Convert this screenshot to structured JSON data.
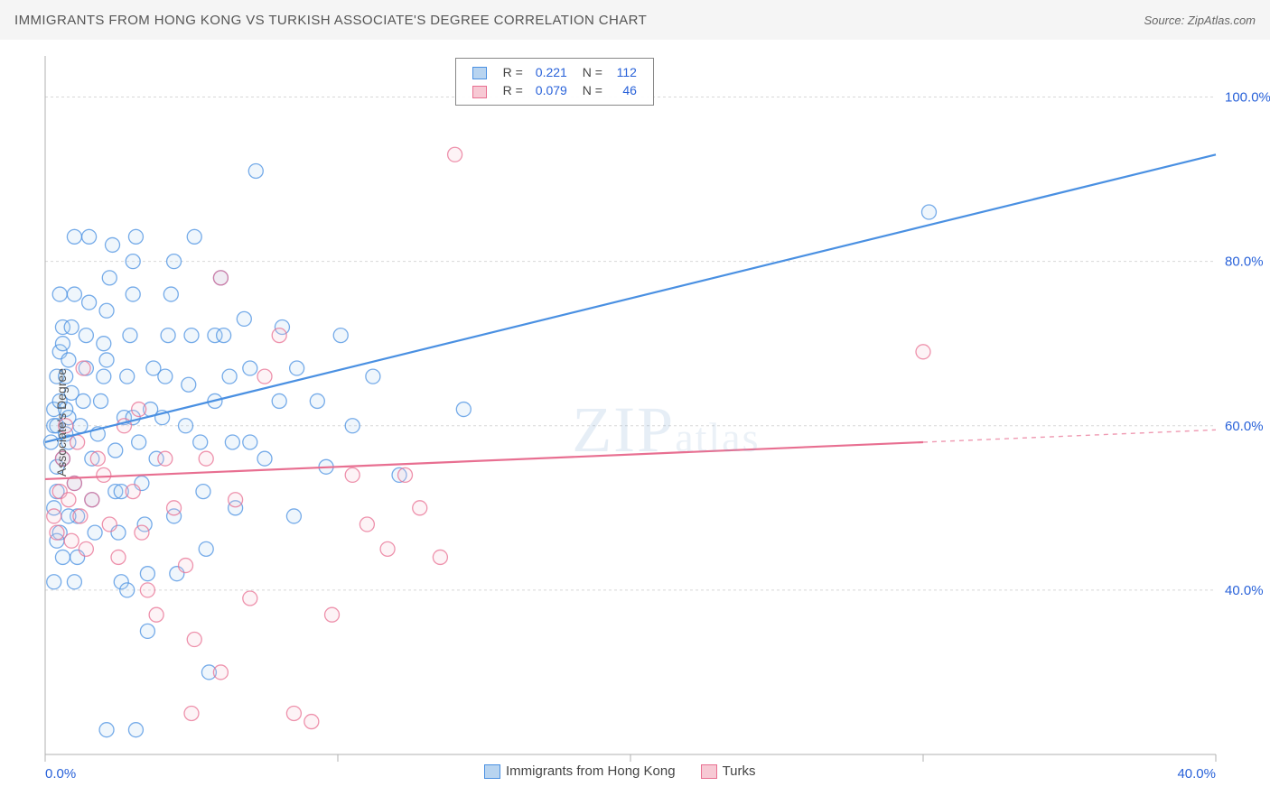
{
  "title": "IMMIGRANTS FROM HONG KONG VS TURKISH ASSOCIATE'S DEGREE CORRELATION CHART",
  "source": "Source: ZipAtlas.com",
  "ylabel": "Associate's Degree",
  "watermark": {
    "zip": "ZIP",
    "atlas": "atlas"
  },
  "chart": {
    "type": "scatter",
    "plot_bg": "#ffffff",
    "grid_color": "#d8d8d8",
    "axis_color": "#b0b0b0",
    "tick_label_color": "#2962d9",
    "tick_fontsize": 15,
    "xlim": [
      0,
      40
    ],
    "ylim": [
      20,
      105
    ],
    "y_gridlines": [
      40,
      60,
      80,
      100
    ],
    "x_gridlines": [
      0,
      10,
      20,
      30,
      40
    ],
    "x_tick_labels": {
      "0": "0.0%",
      "40": "40.0%"
    },
    "y_tick_labels": {
      "40": "40.0%",
      "60": "60.0%",
      "80": "80.0%",
      "100": "100.0%"
    },
    "marker_radius": 8,
    "marker_fill_opacity": 0.22,
    "marker_stroke_width": 1.3,
    "line_width": 2.2,
    "legend_top": {
      "rows": [
        {
          "swatch_fill": "#b8d4f0",
          "swatch_stroke": "#4a90e2",
          "r_label": "R =",
          "r_val": "0.221",
          "n_label": "N =",
          "n_val": "112",
          "val_color": "#2962d9"
        },
        {
          "swatch_fill": "#f7c9d4",
          "swatch_stroke": "#e86f91",
          "r_label": "R =",
          "r_val": "0.079",
          "n_label": "N =",
          "n_val": "46",
          "val_color": "#2962d9"
        }
      ]
    },
    "legend_bottom": {
      "items": [
        {
          "swatch_fill": "#b8d4f0",
          "swatch_stroke": "#4a90e2",
          "label": "Immigrants from Hong Kong"
        },
        {
          "swatch_fill": "#f7c9d4",
          "swatch_stroke": "#e86f91",
          "label": "Turks"
        }
      ]
    },
    "series": [
      {
        "name": "hongkong",
        "color_stroke": "#4a90e2",
        "color_fill": "#b8d4f0",
        "trend": {
          "x1": 0,
          "y1": 58,
          "x2": 40,
          "y2": 93,
          "dash_extra": null
        },
        "points": [
          [
            0.2,
            58
          ],
          [
            0.3,
            60
          ],
          [
            0.3,
            62
          ],
          [
            0.4,
            60
          ],
          [
            0.5,
            63
          ],
          [
            0.4,
            66
          ],
          [
            0.5,
            69
          ],
          [
            0.6,
            72
          ],
          [
            0.5,
            76
          ],
          [
            0.4,
            55
          ],
          [
            0.3,
            50
          ],
          [
            0.5,
            47
          ],
          [
            0.6,
            44
          ],
          [
            0.3,
            41
          ],
          [
            0.6,
            56
          ],
          [
            0.7,
            59
          ],
          [
            0.7,
            62
          ],
          [
            0.7,
            66
          ],
          [
            0.8,
            61
          ],
          [
            0.8,
            58
          ],
          [
            0.9,
            64
          ],
          [
            0.8,
            68
          ],
          [
            0.9,
            72
          ],
          [
            1.0,
            76
          ],
          [
            1.0,
            53
          ],
          [
            1.1,
            49
          ],
          [
            1.1,
            44
          ],
          [
            1.2,
            60
          ],
          [
            1.3,
            63
          ],
          [
            1.4,
            67
          ],
          [
            1.4,
            71
          ],
          [
            1.5,
            75
          ],
          [
            1.5,
            83
          ],
          [
            1.6,
            56
          ],
          [
            1.6,
            51
          ],
          [
            1.7,
            47
          ],
          [
            1.8,
            59
          ],
          [
            1.9,
            63
          ],
          [
            2.0,
            66
          ],
          [
            2.0,
            70
          ],
          [
            2.1,
            74
          ],
          [
            2.2,
            78
          ],
          [
            2.3,
            82
          ],
          [
            2.4,
            57
          ],
          [
            2.4,
            52
          ],
          [
            2.5,
            47
          ],
          [
            2.6,
            41
          ],
          [
            2.7,
            61
          ],
          [
            2.8,
            66
          ],
          [
            2.9,
            71
          ],
          [
            3.0,
            76
          ],
          [
            3.0,
            80
          ],
          [
            3.1,
            83
          ],
          [
            3.2,
            58
          ],
          [
            3.3,
            53
          ],
          [
            3.4,
            48
          ],
          [
            3.5,
            42
          ],
          [
            3.5,
            35
          ],
          [
            3.6,
            62
          ],
          [
            3.7,
            67
          ],
          [
            3.8,
            56
          ],
          [
            4.0,
            61
          ],
          [
            4.1,
            66
          ],
          [
            4.2,
            71
          ],
          [
            4.3,
            76
          ],
          [
            4.4,
            80
          ],
          [
            4.4,
            49
          ],
          [
            4.5,
            42
          ],
          [
            4.8,
            60
          ],
          [
            4.9,
            65
          ],
          [
            5.0,
            71
          ],
          [
            5.1,
            83
          ],
          [
            5.3,
            58
          ],
          [
            5.4,
            52
          ],
          [
            5.5,
            45
          ],
          [
            5.6,
            30
          ],
          [
            5.8,
            63
          ],
          [
            5.8,
            71
          ],
          [
            6.0,
            78
          ],
          [
            6.1,
            71
          ],
          [
            6.3,
            66
          ],
          [
            6.4,
            58
          ],
          [
            6.5,
            50
          ],
          [
            6.8,
            73
          ],
          [
            7.0,
            67
          ],
          [
            7.0,
            58
          ],
          [
            7.2,
            91
          ],
          [
            7.5,
            56
          ],
          [
            8.0,
            63
          ],
          [
            8.1,
            72
          ],
          [
            8.5,
            49
          ],
          [
            8.6,
            67
          ],
          [
            9.3,
            63
          ],
          [
            9.6,
            55
          ],
          [
            10.1,
            71
          ],
          [
            10.5,
            60
          ],
          [
            11.2,
            66
          ],
          [
            12.1,
            54
          ],
          [
            14.3,
            62
          ],
          [
            30.2,
            86
          ],
          [
            1.0,
            83
          ],
          [
            2.1,
            68
          ],
          [
            3.0,
            61
          ],
          [
            2.6,
            52
          ],
          [
            0.4,
            52
          ],
          [
            0.6,
            70
          ],
          [
            0.8,
            49
          ],
          [
            1.0,
            41
          ],
          [
            2.8,
            40
          ],
          [
            3.1,
            23
          ],
          [
            2.1,
            23
          ],
          [
            0.4,
            46
          ]
        ]
      },
      {
        "name": "turks",
        "color_stroke": "#e86f91",
        "color_fill": "#f7c9d4",
        "trend": {
          "x1": 0,
          "y1": 53.5,
          "x2": 30,
          "y2": 58,
          "dash_extra": {
            "x1": 30,
            "y1": 58,
            "x2": 40,
            "y2": 59.5
          }
        },
        "points": [
          [
            0.3,
            49
          ],
          [
            0.4,
            47
          ],
          [
            0.5,
            52
          ],
          [
            0.6,
            56
          ],
          [
            0.7,
            60
          ],
          [
            0.8,
            51
          ],
          [
            0.9,
            46
          ],
          [
            1.0,
            53
          ],
          [
            1.1,
            58
          ],
          [
            1.2,
            49
          ],
          [
            1.4,
            45
          ],
          [
            1.6,
            51
          ],
          [
            1.8,
            56
          ],
          [
            2.0,
            54
          ],
          [
            2.2,
            48
          ],
          [
            2.5,
            44
          ],
          [
            2.7,
            60
          ],
          [
            3.0,
            52
          ],
          [
            3.3,
            47
          ],
          [
            3.5,
            40
          ],
          [
            3.8,
            37
          ],
          [
            4.1,
            56
          ],
          [
            4.4,
            50
          ],
          [
            4.8,
            43
          ],
          [
            5.1,
            34
          ],
          [
            5.5,
            56
          ],
          [
            6.0,
            78
          ],
          [
            6.5,
            51
          ],
          [
            7.0,
            39
          ],
          [
            7.5,
            66
          ],
          [
            8.0,
            71
          ],
          [
            9.1,
            24
          ],
          [
            9.8,
            37
          ],
          [
            10.5,
            54
          ],
          [
            11.0,
            48
          ],
          [
            11.7,
            45
          ],
          [
            12.3,
            54
          ],
          [
            12.8,
            50
          ],
          [
            13.5,
            44
          ],
          [
            14.0,
            93
          ],
          [
            30.0,
            69
          ],
          [
            3.2,
            62
          ],
          [
            5.0,
            25
          ],
          [
            6.0,
            30
          ],
          [
            8.5,
            25
          ],
          [
            1.3,
            67
          ]
        ]
      }
    ]
  }
}
